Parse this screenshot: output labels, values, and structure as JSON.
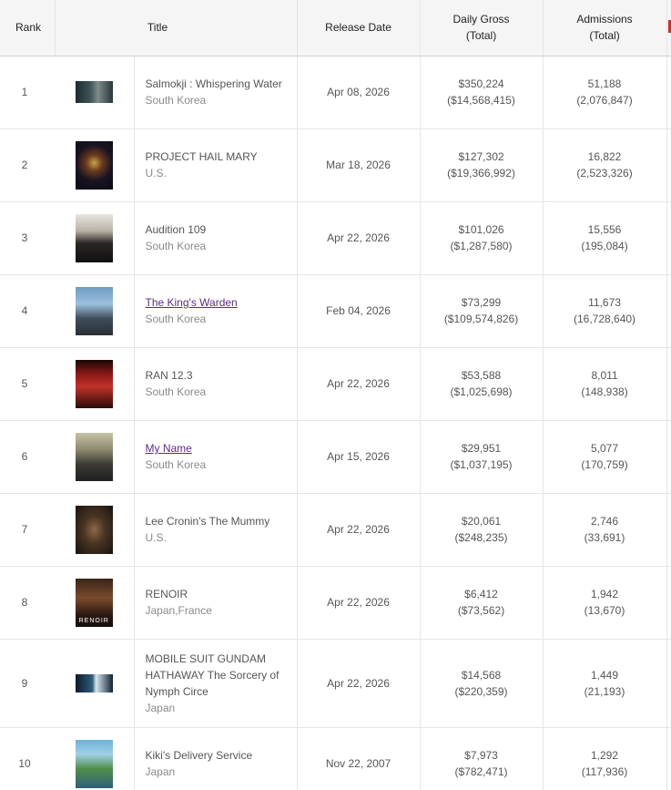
{
  "headers": {
    "rank": "Rank",
    "title": "Title",
    "release": "Release Date",
    "gross": "Daily Gross",
    "gross_sub": "(Total)",
    "admissions": "Admissions",
    "admissions_sub": "(Total)"
  },
  "rows": [
    {
      "rank": "1",
      "title": "Salmokji : Whispering Water",
      "country": "South Korea",
      "release": "Apr 08, 2026",
      "gross": "$350,224",
      "gross_total": "($14,568,415)",
      "adm": "51,188",
      "adm_total": "(2,076,847)"
    },
    {
      "rank": "2",
      "title": "PROJECT HAIL MARY",
      "country": "U.S.",
      "release": "Mar 18, 2026",
      "gross": "$127,302",
      "gross_total": "($19,366,992)",
      "adm": "16,822",
      "adm_total": "(2,523,326)"
    },
    {
      "rank": "3",
      "title": "Audition 109",
      "country": "South Korea",
      "release": "Apr 22, 2026",
      "gross": "$101,026",
      "gross_total": "($1,287,580)",
      "adm": "15,556",
      "adm_total": "(195,084)"
    },
    {
      "rank": "4",
      "title": "The King's Warden",
      "country": "South Korea",
      "release": "Feb 04, 2026",
      "gross": "$73,299",
      "gross_total": "($109,574,826)",
      "adm": "11,673",
      "adm_total": "(16,728,640)"
    },
    {
      "rank": "5",
      "title": "RAN 12.3",
      "country": "South Korea",
      "release": "Apr 22, 2026",
      "gross": "$53,588",
      "gross_total": "($1,025,698)",
      "adm": "8,011",
      "adm_total": "(148,938)"
    },
    {
      "rank": "6",
      "title": "My Name",
      "country": "South Korea",
      "release": "Apr 15, 2026",
      "gross": "$29,951",
      "gross_total": "($1,037,195)",
      "adm": "5,077",
      "adm_total": "(170,759)"
    },
    {
      "rank": "7",
      "title": "Lee Cronin's The Mummy",
      "country": "U.S.",
      "release": "Apr 22, 2026",
      "gross": "$20,061",
      "gross_total": "($248,235)",
      "adm": "2,746",
      "adm_total": "(33,691)"
    },
    {
      "rank": "8",
      "title": "RENOIR",
      "country": "Japan,France",
      "release": "Apr 22, 2026",
      "gross": "$6,412",
      "gross_total": "($73,562)",
      "adm": "1,942",
      "adm_total": "(13,670)"
    },
    {
      "rank": "9",
      "title": "MOBILE SUIT GUNDAM HATHAWAY The Sorcery of Nymph Circe",
      "country": "Japan",
      "release": "Apr 22, 2026",
      "gross": "$14,568",
      "gross_total": "($220,359)",
      "adm": "1,449",
      "adm_total": "(21,193)"
    },
    {
      "rank": "10",
      "title": "Kiki's Delivery Service",
      "country": "Japan",
      "release": "Nov 22, 2007",
      "gross": "$7,973",
      "gross_total": "($782,471)",
      "adm": "1,292",
      "adm_total": "(117,936)"
    }
  ],
  "poster_text": {
    "p8": "RENOIR"
  }
}
